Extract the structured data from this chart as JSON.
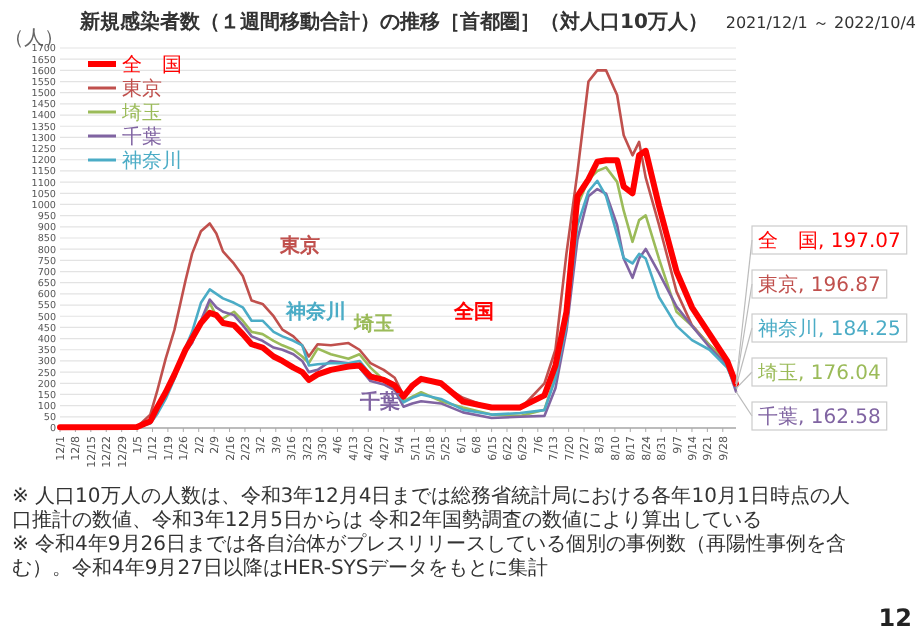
{
  "chart_data": {
    "type": "line",
    "title": "新規感染者数（１週間移動合計）の推移［首都圏］（対人口10万人）",
    "subtitle": "2021/12/1 ～ 2022/10/4",
    "ylabel": "（人）",
    "x": [
      "2021-12-01",
      "2022-01-05",
      "2022-01-11",
      "2022-01-14",
      "2022-01-18",
      "2022-01-22",
      "2022-01-27",
      "2022-01-30",
      "2022-02-03",
      "2022-02-07",
      "2022-02-10",
      "2022-02-13",
      "2022-02-18",
      "2022-02-22",
      "2022-02-26",
      "2022-03-03",
      "2022-03-08",
      "2022-03-12",
      "2022-03-17",
      "2022-03-21",
      "2022-03-24",
      "2022-03-28",
      "2022-04-03",
      "2022-04-11",
      "2022-04-16",
      "2022-04-21",
      "2022-04-27",
      "2022-05-02",
      "2022-05-06",
      "2022-05-10",
      "2022-05-14",
      "2022-05-23",
      "2022-06-02",
      "2022-06-15",
      "2022-06-28",
      "2022-07-09",
      "2022-07-14",
      "2022-07-19",
      "2022-07-24",
      "2022-07-29",
      "2022-08-02",
      "2022-08-06",
      "2022-08-11",
      "2022-08-14",
      "2022-08-18",
      "2022-08-21",
      "2022-08-24",
      "2022-08-30",
      "2022-09-07",
      "2022-09-14",
      "2022-09-22",
      "2022-09-30",
      "2022-10-04"
    ],
    "series": [
      {
        "name": "全　国",
        "color": "#ff0000",
        "values": [
          3,
          4,
          30,
          90,
          160,
          240,
          350,
          400,
          470,
          515,
          505,
          470,
          460,
          420,
          375,
          360,
          320,
          300,
          270,
          250,
          215,
          240,
          260,
          275,
          280,
          230,
          215,
          190,
          140,
          190,
          220,
          200,
          118,
          92,
          92,
          146,
          280,
          520,
          1037,
          1112,
          1191,
          1198,
          1198,
          1080,
          1050,
          1220,
          1240,
          994,
          700,
          540,
          420,
          300,
          197.07
        ]
      },
      {
        "name": "東京",
        "color": "#c0504d",
        "values": [
          3,
          5,
          60,
          160,
          310,
          440,
          660,
          780,
          880,
          915,
          870,
          790,
          735,
          680,
          570,
          555,
          500,
          440,
          410,
          370,
          320,
          375,
          370,
          380,
          350,
          290,
          260,
          225,
          145,
          180,
          220,
          195,
          135,
          88,
          85,
          200,
          350,
          780,
          1145,
          1550,
          1600,
          1600,
          1490,
          1310,
          1220,
          1280,
          1120,
          910,
          610,
          460,
          370,
          300,
          196.87
        ]
      },
      {
        "name": "埼玉",
        "color": "#9bbb59",
        "values": [
          null,
          null,
          null,
          null,
          null,
          null,
          null,
          390,
          470,
          560,
          500,
          490,
          520,
          480,
          430,
          420,
          390,
          370,
          350,
          320,
          290,
          355,
          330,
          310,
          330,
          270,
          215,
          190,
          120,
          140,
          160,
          120,
          92,
          60,
          54,
          82,
          230,
          511,
          994,
          1112,
          1150,
          1166,
          1101,
          972,
          833,
          930,
          951,
          758,
          520,
          457,
          371,
          290,
          176.04
        ]
      },
      {
        "name": "千葉",
        "color": "#8064a2",
        "values": [
          3,
          4,
          25,
          70,
          140,
          230,
          340,
          380,
          480,
          575,
          540,
          520,
          505,
          460,
          410,
          390,
          360,
          350,
          330,
          300,
          250,
          260,
          300,
          290,
          270,
          210,
          195,
          170,
          95,
          110,
          120,
          110,
          70,
          45,
          50,
          54,
          178,
          436,
          844,
          1037,
          1069,
          1048,
          908,
          758,
          672,
          758,
          801,
          694,
          543,
          457,
          361,
          280,
          162.58
        ]
      },
      {
        "name": "神奈川",
        "color": "#4bacc6",
        "values": [
          3,
          4,
          20,
          60,
          130,
          220,
          360,
          430,
          560,
          620,
          600,
          580,
          560,
          540,
          480,
          480,
          430,
          410,
          390,
          370,
          280,
          285,
          290,
          290,
          300,
          240,
          210,
          180,
          115,
          135,
          150,
          130,
          82,
          60,
          67,
          80,
          221,
          457,
          908,
          1058,
          1106,
          1037,
          865,
          760,
          736,
          779,
          758,
          586,
          457,
          393,
          350,
          270,
          184.25
        ]
      }
    ],
    "xlim": [
      "2021-12-01",
      "2022-10-04"
    ],
    "xticks": [
      {
        "value": "2021-12-01",
        "label": "12/1"
      },
      {
        "value": "2021-12-08",
        "label": "12/8"
      },
      {
        "value": "2021-12-15",
        "label": "12/15"
      },
      {
        "value": "2021-12-22",
        "label": "12/22"
      },
      {
        "value": "2021-12-29",
        "label": "12/29"
      },
      {
        "value": "2022-01-05",
        "label": "1/5"
      },
      {
        "value": "2022-01-12",
        "label": "1/12"
      },
      {
        "value": "2022-01-19",
        "label": "1/19"
      },
      {
        "value": "2022-01-26",
        "label": "1/26"
      },
      {
        "value": "2022-02-02",
        "label": "2/2"
      },
      {
        "value": "2022-02-09",
        "label": "2/9"
      },
      {
        "value": "2022-02-16",
        "label": "2/16"
      },
      {
        "value": "2022-02-23",
        "label": "2/23"
      },
      {
        "value": "2022-03-02",
        "label": "3/2"
      },
      {
        "value": "2022-03-09",
        "label": "3/9"
      },
      {
        "value": "2022-03-16",
        "label": "3/16"
      },
      {
        "value": "2022-03-23",
        "label": "3/23"
      },
      {
        "value": "2022-03-30",
        "label": "3/30"
      },
      {
        "value": "2022-04-06",
        "label": "4/6"
      },
      {
        "value": "2022-04-13",
        "label": "4/13"
      },
      {
        "value": "2022-04-20",
        "label": "4/20"
      },
      {
        "value": "2022-04-27",
        "label": "4/27"
      },
      {
        "value": "2022-05-04",
        "label": "5/4"
      },
      {
        "value": "2022-05-11",
        "label": "5/11"
      },
      {
        "value": "2022-05-18",
        "label": "5/18"
      },
      {
        "value": "2022-05-25",
        "label": "5/25"
      },
      {
        "value": "2022-06-01",
        "label": "6/1"
      },
      {
        "value": "2022-06-08",
        "label": "6/8"
      },
      {
        "value": "2022-06-15",
        "label": "6/15"
      },
      {
        "value": "2022-06-22",
        "label": "6/22"
      },
      {
        "value": "2022-06-29",
        "label": "6/29"
      },
      {
        "value": "2022-07-06",
        "label": "7/6"
      },
      {
        "value": "2022-07-13",
        "label": "7/13"
      },
      {
        "value": "2022-07-20",
        "label": "7/20"
      },
      {
        "value": "2022-07-27",
        "label": "7/27"
      },
      {
        "value": "2022-08-03",
        "label": "8/3"
      },
      {
        "value": "2022-08-10",
        "label": "8/10"
      },
      {
        "value": "2022-08-17",
        "label": "8/17"
      },
      {
        "value": "2022-08-24",
        "label": "8/24"
      },
      {
        "value": "2022-08-31",
        "label": "8/31"
      },
      {
        "value": "2022-09-07",
        "label": "9/7"
      },
      {
        "value": "2022-09-14",
        "label": "9/14"
      },
      {
        "value": "2022-09-21",
        "label": "9/21"
      },
      {
        "value": "2022-09-28",
        "label": "9/28"
      }
    ],
    "ylim": [
      0,
      1700
    ],
    "yticks": [
      0,
      50,
      100,
      150,
      200,
      250,
      300,
      350,
      400,
      450,
      500,
      550,
      600,
      650,
      700,
      750,
      800,
      850,
      900,
      950,
      1000,
      1050,
      1100,
      1150,
      1200,
      1250,
      1300,
      1350,
      1400,
      1450,
      1500,
      1550,
      1600,
      1650,
      1700
    ],
    "grid": "y",
    "legend": "top left",
    "marker": "none",
    "line_style": "solid",
    "annotations": [
      "東京",
      "神奈川",
      "埼玉",
      "千葉",
      "全国",
      {
        "text": "全　国, 197.07",
        "x": "2022-10-04",
        "y": 197.07
      },
      {
        "text": "東京, 196.87",
        "x": "2022-10-04",
        "y": 196.87
      },
      {
        "text": "神奈川, 184.25",
        "x": "2022-10-04",
        "y": 184.25
      },
      {
        "text": "埼玉, 176.04",
        "x": "2022-10-04",
        "y": 176.04
      },
      {
        "text": "千葉, 162.58",
        "x": "2022-10-04",
        "y": 162.58
      },
      "※ 人口10万人の人数は、令和3年12月4日までは総務省統計局における各年10月1日時点の人口推計の数値、令和3年12月5日からは 令和2年国勢調査の数値により算出している",
      "※ 令和4年9月26日までは各自治体がプレスリリースしている個別の事例数（再陽性事例を含む）。令和4年9月27日以降はHER-SYSデータをもとに集計",
      "12"
    ]
  }
}
